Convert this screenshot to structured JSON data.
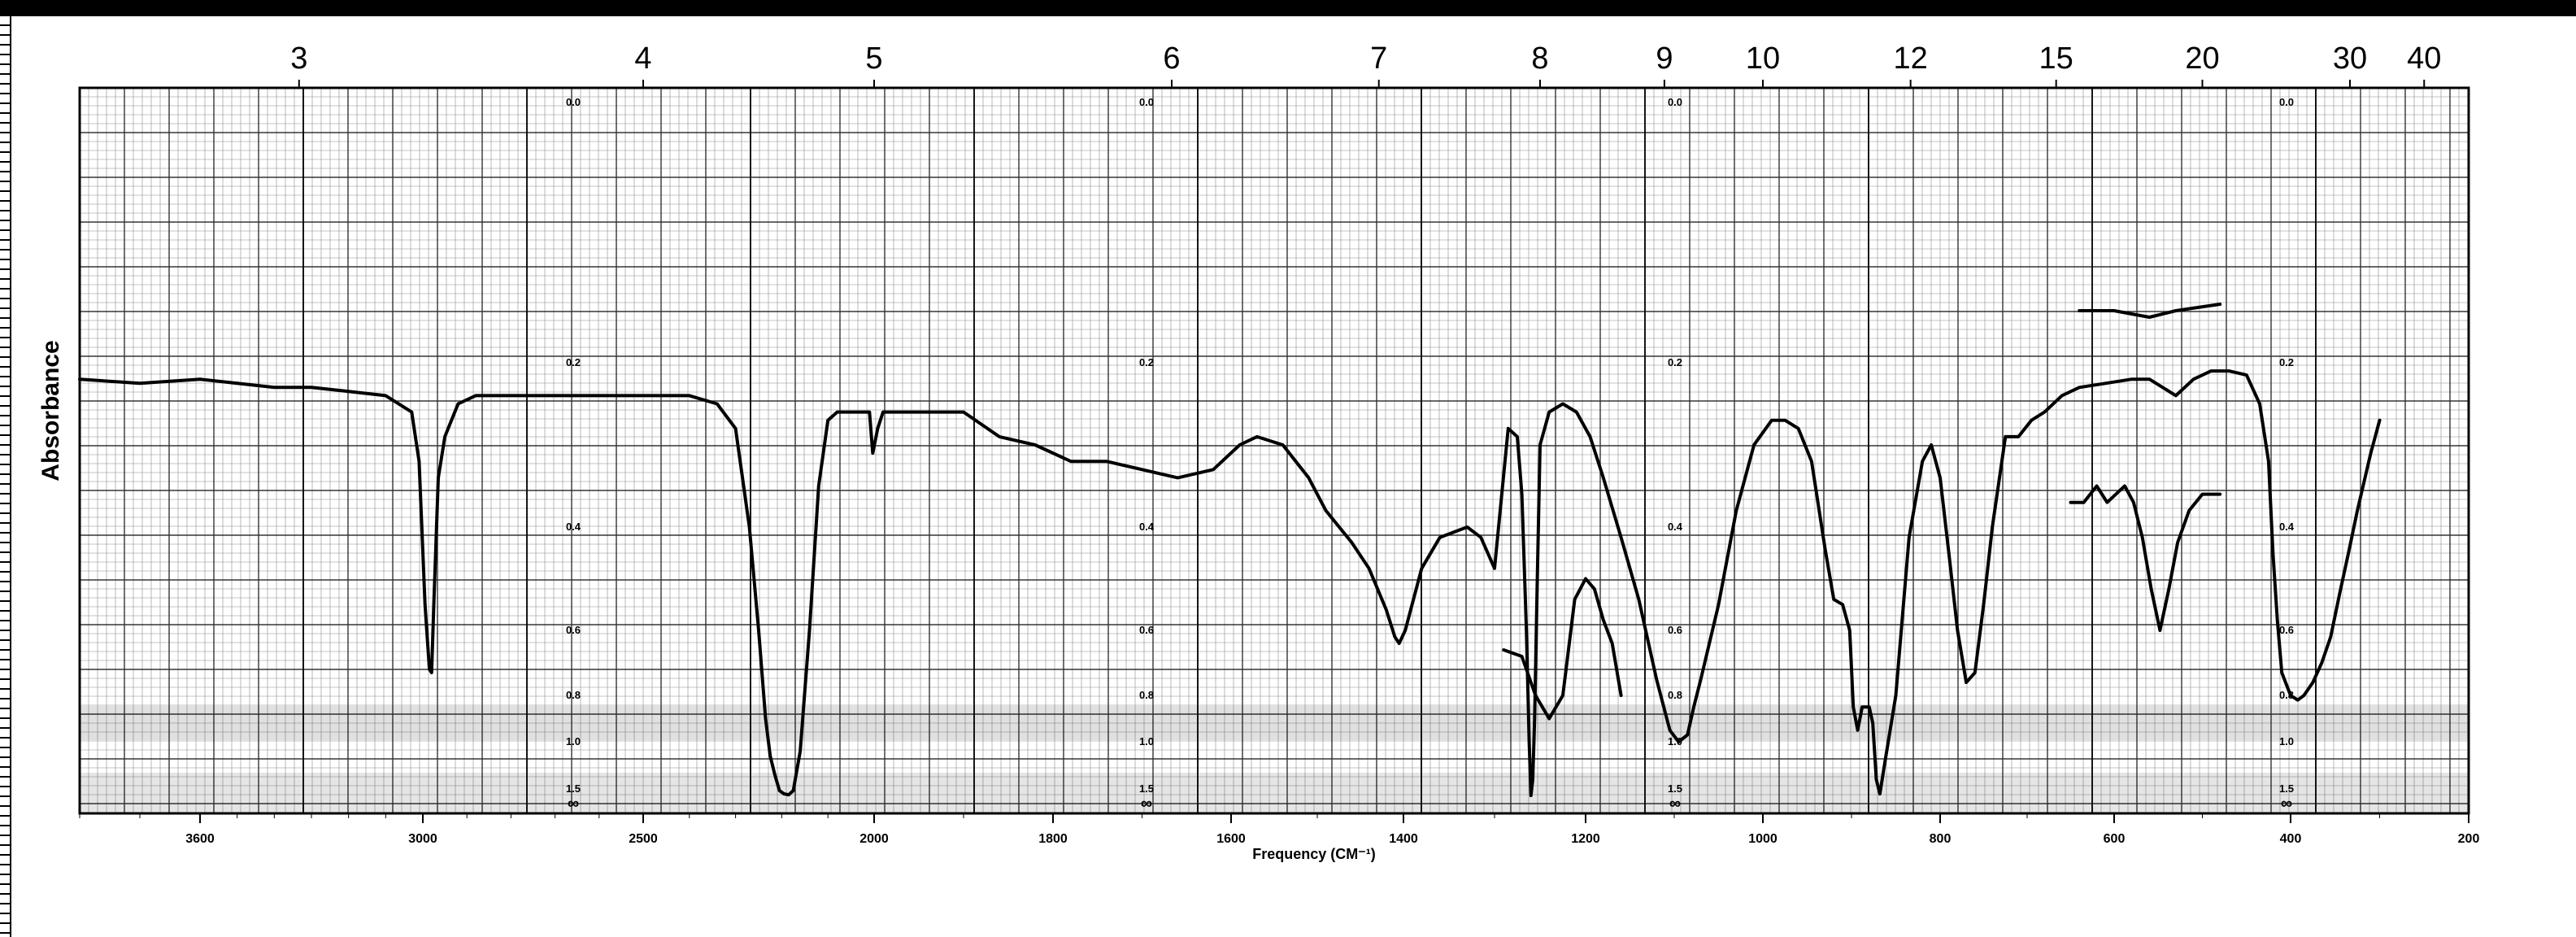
{
  "chart_data": {
    "type": "line",
    "title": "",
    "xlabel": "Frequency (CM⁻¹)",
    "ylabel": "Absorbance",
    "x_scale": "piecewise-linear (expanded above 2000 cm⁻¹)",
    "x_range": [
      3800,
      200
    ],
    "y_range": [
      0.0,
      2.0
    ],
    "grid": true,
    "bottom_ticks": [
      "3600",
      "3000",
      "2500",
      "2000",
      "1800",
      "1600",
      "1400",
      "1200",
      "1000",
      "800",
      "600",
      "400",
      "200"
    ],
    "top_ticks": [
      "3",
      "4",
      "5",
      "6",
      "7",
      "8",
      "9",
      "10",
      "12",
      "15",
      "20",
      "30",
      "40"
    ],
    "absorbance_ticks": [
      "0.0",
      "0.2",
      "0.4",
      "0.6",
      "0.8",
      "1.0",
      "1.5",
      "∞"
    ],
    "series": [
      {
        "x": [
          3800,
          3700,
          3600,
          3500,
          3400,
          3300,
          3200,
          3100,
          3030,
          3010,
          2995,
          2985,
          2980,
          2975,
          2965,
          2950,
          2920,
          2880,
          2800,
          2700,
          2600,
          2500,
          2400,
          2340,
          2300,
          2270,
          2250,
          2235,
          2225,
          2215,
          2205,
          2195,
          2185,
          2175,
          2160,
          2140,
          2120,
          2100,
          2080,
          2060,
          2040,
          2010,
          2003,
          1996,
          1990,
          1960,
          1900,
          1860,
          1820,
          1780,
          1740,
          1700,
          1660,
          1620,
          1590,
          1570,
          1540,
          1510,
          1490,
          1460,
          1440,
          1420,
          1410,
          1405,
          1398,
          1380,
          1360,
          1330,
          1315,
          1300,
          1285,
          1275,
          1270,
          1265,
          1262,
          1260,
          1258,
          1256,
          1253,
          1250,
          1240,
          1225,
          1210,
          1195,
          1180,
          1160,
          1140,
          1120,
          1105,
          1095,
          1085,
          1078,
          1070,
          1050,
          1030,
          1010,
          990,
          975,
          960,
          945,
          930,
          920,
          910,
          902,
          898,
          893,
          888,
          884,
          880,
          876,
          872,
          868,
          862,
          850,
          835,
          820,
          810,
          800,
          790,
          780,
          770,
          760,
          750,
          740,
          725,
          710,
          695,
          680,
          660,
          640,
          610,
          580,
          560,
          545,
          530,
          510,
          490,
          470,
          450,
          435,
          425,
          420,
          415,
          410,
          400,
          392,
          385,
          375,
          365,
          355,
          345,
          335,
          325,
          310,
          300
        ],
        "y": [
          0.22,
          0.225,
          0.22,
          0.225,
          0.23,
          0.23,
          0.235,
          0.24,
          0.26,
          0.32,
          0.55,
          0.72,
          0.73,
          0.55,
          0.34,
          0.29,
          0.25,
          0.24,
          0.24,
          0.24,
          0.24,
          0.24,
          0.24,
          0.25,
          0.28,
          0.4,
          0.6,
          0.9,
          1.15,
          1.35,
          1.55,
          1.65,
          1.68,
          1.55,
          1.1,
          0.6,
          0.35,
          0.27,
          0.26,
          0.26,
          0.26,
          0.26,
          0.31,
          0.28,
          0.26,
          0.26,
          0.26,
          0.29,
          0.3,
          0.32,
          0.32,
          0.33,
          0.34,
          0.33,
          0.3,
          0.29,
          0.3,
          0.34,
          0.38,
          0.43,
          0.48,
          0.56,
          0.62,
          0.64,
          0.6,
          0.48,
          0.42,
          0.4,
          0.42,
          0.48,
          0.28,
          0.29,
          0.36,
          0.6,
          1.0,
          1.7,
          1.4,
          0.9,
          0.5,
          0.3,
          0.26,
          0.25,
          0.26,
          0.29,
          0.34,
          0.42,
          0.54,
          0.75,
          0.95,
          1.0,
          0.97,
          0.85,
          0.75,
          0.55,
          0.38,
          0.3,
          0.27,
          0.27,
          0.28,
          0.32,
          0.44,
          0.54,
          0.55,
          0.6,
          0.85,
          0.95,
          0.85,
          0.85,
          0.85,
          0.92,
          1.4,
          1.65,
          1.2,
          0.8,
          0.42,
          0.32,
          0.3,
          0.34,
          0.45,
          0.6,
          0.76,
          0.73,
          0.55,
          0.4,
          0.29,
          0.29,
          0.27,
          0.26,
          0.24,
          0.23,
          0.225,
          0.22,
          0.22,
          0.23,
          0.24,
          0.22,
          0.21,
          0.21,
          0.215,
          0.25,
          0.32,
          0.45,
          0.58,
          0.73,
          0.8,
          0.82,
          0.8,
          0.76,
          0.7,
          0.62,
          0.53,
          0.45,
          0.38,
          0.31,
          0.27
        ]
      },
      {
        "x": [
          1290,
          1270,
          1255,
          1240,
          1225,
          1212,
          1200,
          1190,
          1180,
          1170,
          1160
        ],
        "y": [
          0.66,
          0.68,
          0.8,
          0.9,
          0.8,
          0.54,
          0.5,
          0.52,
          0.58,
          0.64,
          0.8
        ]
      },
      {
        "x": [
          650,
          635,
          620,
          608,
          598,
          588,
          578,
          568,
          558,
          548,
          538,
          528,
          515,
          500,
          480
        ],
        "y": [
          0.37,
          0.37,
          0.35,
          0.37,
          0.36,
          0.35,
          0.37,
          0.42,
          0.52,
          0.6,
          0.52,
          0.43,
          0.38,
          0.36,
          0.36
        ]
      },
      {
        "x": [
          640,
          600,
          560,
          530,
          480
        ],
        "y": [
          0.16,
          0.16,
          0.165,
          0.16,
          0.155
        ]
      }
    ]
  }
}
